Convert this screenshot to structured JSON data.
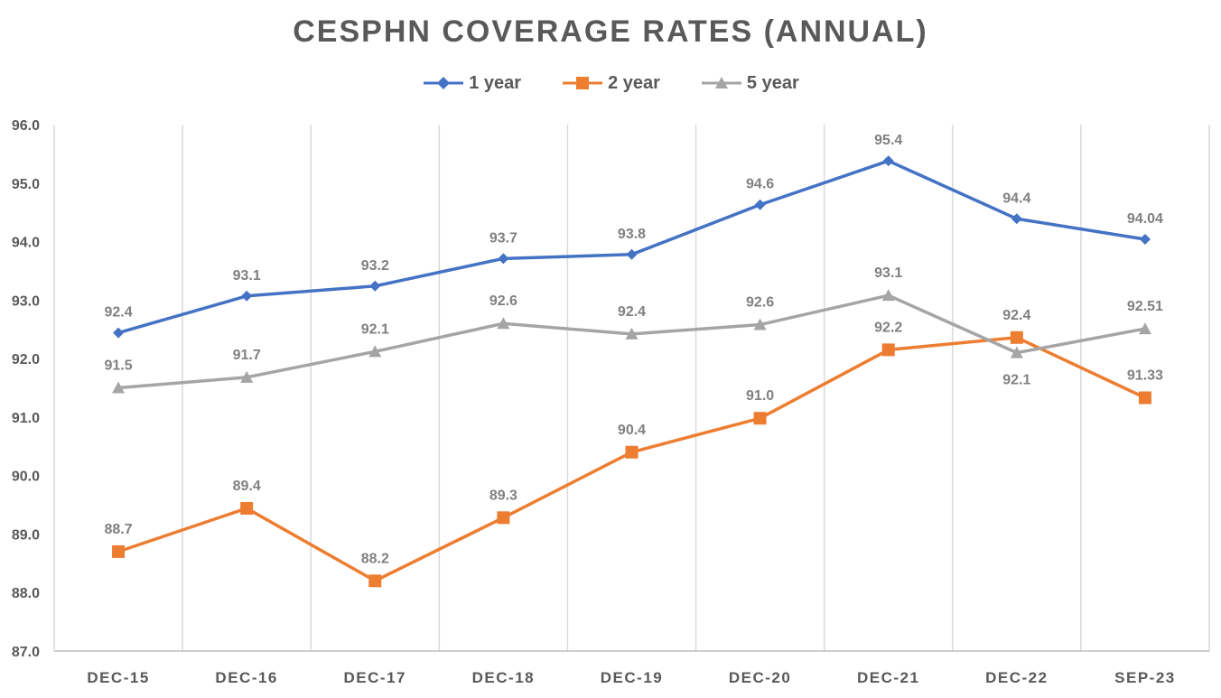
{
  "chart_data": {
    "type": "line",
    "title": "CESPHN COVERAGE RATES (ANNUAL)",
    "categories": [
      "DEC-15",
      "DEC-16",
      "DEC-17",
      "DEC-18",
      "DEC-19",
      "DEC-20",
      "DEC-21",
      "DEC-22",
      "SEP-23"
    ],
    "ylim": [
      87.0,
      96.0
    ],
    "yticks": [
      "87.0",
      "88.0",
      "89.0",
      "90.0",
      "91.0",
      "92.0",
      "93.0",
      "94.0",
      "95.0",
      "96.0"
    ],
    "grid": "vertical",
    "legend_position": "top",
    "series": [
      {
        "name": "1 year",
        "color": "#4472C4",
        "marker": "diamond",
        "values": [
          92.44,
          93.07,
          93.24,
          93.71,
          93.78,
          94.63,
          95.38,
          94.39,
          94.04
        ],
        "labels": [
          "92.4",
          "93.1",
          "93.2",
          "93.7",
          "93.8",
          "94.6",
          "95.4",
          "94.4",
          "94.04"
        ]
      },
      {
        "name": "2 year",
        "color": "#ED7D31",
        "marker": "square",
        "values": [
          88.7,
          89.44,
          88.2,
          89.28,
          90.4,
          90.98,
          92.15,
          92.36,
          91.33
        ],
        "labels": [
          "88.7",
          "89.4",
          "88.2",
          "89.3",
          "90.4",
          "91.0",
          "92.2",
          "92.4",
          "91.33"
        ]
      },
      {
        "name": "5 year",
        "color": "#A5A5A5",
        "marker": "triangle",
        "values": [
          91.5,
          91.68,
          92.12,
          92.6,
          92.42,
          92.58,
          93.08,
          92.1,
          92.51
        ],
        "labels": [
          "91.5",
          "91.7",
          "92.1",
          "92.6",
          "92.4",
          "92.6",
          "93.1",
          "92.1",
          "92.51"
        ]
      }
    ]
  }
}
